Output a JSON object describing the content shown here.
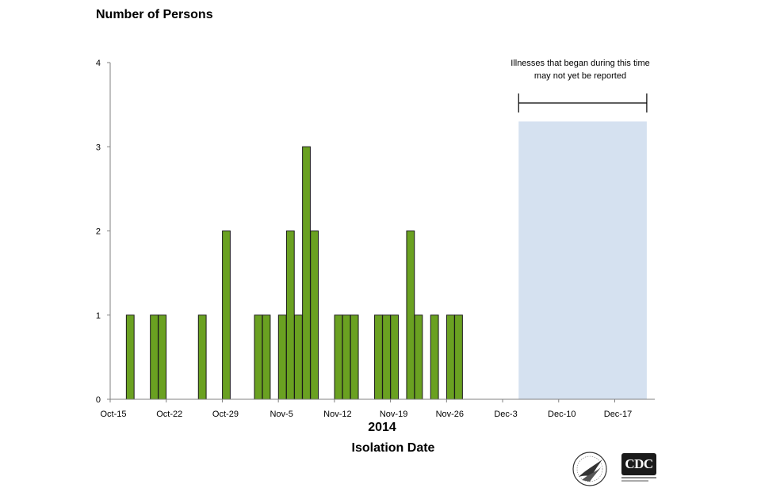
{
  "colors": {
    "bar": "#6aa121",
    "bar_outline": "#1a1a1a",
    "shaded_region": "#d5e1f0",
    "axis": "#808080"
  },
  "chart_data": {
    "type": "bar",
    "y_title": "Number of Persons",
    "xlabel": "Isolation Date",
    "year_label": "2014",
    "ylim": [
      0,
      4
    ],
    "yticks": [
      0,
      1,
      2,
      3,
      4
    ],
    "x_range": [
      "2014-10-15",
      "2014-12-22"
    ],
    "xticks": [
      {
        "label": "Oct-15",
        "date": "2014-10-15"
      },
      {
        "label": "Oct-22",
        "date": "2014-10-22"
      },
      {
        "label": "Oct-29",
        "date": "2014-10-29"
      },
      {
        "label": "Nov-5",
        "date": "2014-11-05"
      },
      {
        "label": "Nov-12",
        "date": "2014-11-12"
      },
      {
        "label": "Nov-19",
        "date": "2014-11-19"
      },
      {
        "label": "Nov-26",
        "date": "2014-11-26"
      },
      {
        "label": "Dec-3",
        "date": "2014-12-03"
      },
      {
        "label": "Dec-10",
        "date": "2014-12-10"
      },
      {
        "label": "Dec-17",
        "date": "2014-12-17"
      }
    ],
    "bars": [
      {
        "date": "2014-10-17",
        "value": 1
      },
      {
        "date": "2014-10-20",
        "value": 1
      },
      {
        "date": "2014-10-21",
        "value": 1
      },
      {
        "date": "2014-10-26",
        "value": 1
      },
      {
        "date": "2014-10-29",
        "value": 2
      },
      {
        "date": "2014-11-02",
        "value": 1
      },
      {
        "date": "2014-11-03",
        "value": 1
      },
      {
        "date": "2014-11-05",
        "value": 1
      },
      {
        "date": "2014-11-06",
        "value": 2
      },
      {
        "date": "2014-11-07",
        "value": 1
      },
      {
        "date": "2014-11-08",
        "value": 3
      },
      {
        "date": "2014-11-09",
        "value": 2
      },
      {
        "date": "2014-11-12",
        "value": 1
      },
      {
        "date": "2014-11-13",
        "value": 1
      },
      {
        "date": "2014-11-14",
        "value": 1
      },
      {
        "date": "2014-11-17",
        "value": 1
      },
      {
        "date": "2014-11-18",
        "value": 1
      },
      {
        "date": "2014-11-19",
        "value": 1
      },
      {
        "date": "2014-11-21",
        "value": 2
      },
      {
        "date": "2014-11-22",
        "value": 1
      },
      {
        "date": "2014-11-24",
        "value": 1
      },
      {
        "date": "2014-11-26",
        "value": 1
      },
      {
        "date": "2014-11-27",
        "value": 1
      }
    ],
    "reporting_delay": {
      "start": "2014-12-05",
      "end": "2014-12-21",
      "shade_top": 3.3,
      "label_line1": "Illnesses that began during this time",
      "label_line2": "may not yet  be reported"
    }
  }
}
